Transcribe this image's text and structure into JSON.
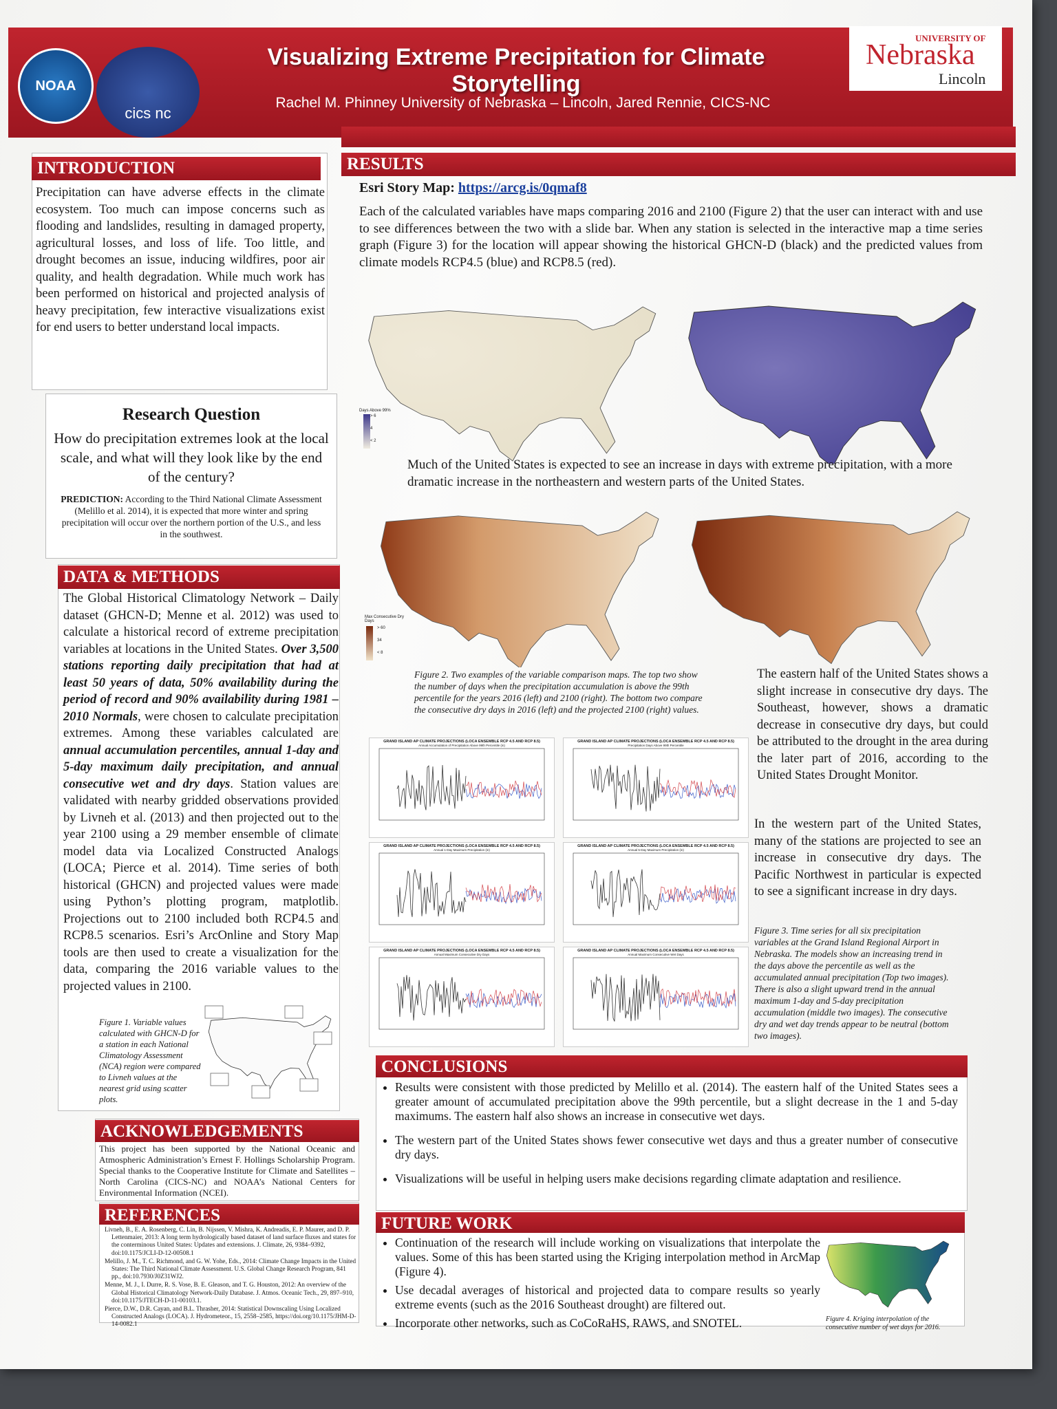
{
  "header": {
    "title": "Visualizing Extreme Precipitation for Climate Storytelling",
    "authors": "Rachel M. Phinney University of Nebraska – Lincoln, Jared Rennie, CICS-NC",
    "logo_left": "NOAA",
    "logo_middle": "cics nc",
    "logo_right_top": "UNIVERSITY OF",
    "logo_right_main": "Nebraska",
    "logo_right_bottom": "Lincoln"
  },
  "introduction": {
    "heading": "INTRODUCTION",
    "body": "Precipitation can have adverse effects in the climate ecosystem. Too much can impose concerns such as flooding and landslides, resulting in damaged property, agricultural losses, and loss of life. Too little, and drought becomes an issue, inducing wildfires, poor air quality, and health degradation. While much work has been performed on historical and projected analysis of heavy precipitation, few interactive visualizations exist for end users to better understand local impacts."
  },
  "research_question": {
    "heading": "Research Question",
    "question": "How do precipitation extremes look at the local scale, and what will they look like by the end of the century?",
    "prediction_label": "PREDICTION:",
    "prediction_text": "According to the Third National Climate Assessment (Melillo et al. 2014), it is expected that more winter and spring precipitation will occur over the northern portion of the U.S., and less in the southwest."
  },
  "data_methods": {
    "heading": "DATA & METHODS",
    "segments": [
      "The Global Historical Climatology Network – Daily dataset (GHCN-D; Menne et al. 2012) was used to calculate a historical record of extreme precipitation variables at locations in the United States. ",
      {
        "strong": "Over 3,500 stations reporting daily precipitation that had at least 50 years of data, 50% availability during the period of record and 90% availability during 1981 – 2010 Normals"
      },
      ", were chosen to calculate precipitation extremes. Among these variables calculated are ",
      {
        "strong": "annual accumulation percentiles, annual 1-day and 5-day maximum daily precipitation, and annual consecutive wet and dry days"
      },
      ". Station values are validated with nearby gridded observations provided by Livneh et al. (2013) and then projected out to the year 2100 using a 29 member ensemble of climate model data via Localized Constructed Analogs (LOCA; Pierce et al. 2014). Time series of both historical (GHCN) and projected values were made using Python’s plotting program, matplotlib. Projections out to 2100 included both RCP4.5 and RCP8.5 scenarios. Esri’s ArcOnline and Story Map tools are then used to create a visualization for the data, comparing the 2016 variable values to the projected values in 2100."
    ],
    "figure_caption": "Figure 1. Variable values calculated with GHCN-D for a station in each National Climatology Assessment (NCA) region were compared to Livneh values at the nearest grid using scatter plots."
  },
  "acknowledgements": {
    "heading": "ACKNOWLEDGEMENTS",
    "body": "This project has been supported by the National Oceanic and Atmospheric Administration’s Ernest F. Hollings Scholarship Program. Special thanks to the Cooperative Institute for Climate and Satellites – North Carolina (CICS-NC) and NOAA’s National Centers for Environmental Information (NCEI)."
  },
  "references": {
    "heading": "REFERENCES",
    "items": [
      "Livneh, B., E. A. Rosenberg, C. Lin, B. Nijssen, V. Mishra, K. Andreadis, E. P. Maurer, and D. P. Lettenmaier, 2013: A long term hydrologically based dataset of land surface fluxes and states for the conterminous United States: Updates and extensions. J. Climate, 26, 9384–9392, doi:10.1175/JCLI-D-12-00508.1",
      "Melillo, J. M., T. C. Richmond, and G. W. Yohe, Eds., 2014: Climate Change Impacts in the United States: The Third National Climate Assessment. U.S. Global Change Research Program, 841 pp., doi:10.7930/J0Z31WJ2.",
      "Menne, M. J., I. Durre, R. S. Vose, B. E. Gleason, and T. G. Houston, 2012: An overview of the Global Historical Climatology Network-Daily Database. J. Atmos. Oceanic Tech., 29, 897–910, doi:10.1175/JTECH-D-11-00103.1.",
      "Pierce, D.W., D.R. Cayan, and B.L. Thrasher, 2014: Statistical Downscaling Using Localized Constructed Analogs (LOCA). J. Hydrometeor., 15, 2558–2585, https://doi.org/10.1175/JHM-D-14-0082.1"
    ]
  },
  "results": {
    "heading": "RESULTS",
    "story_map_label": "Esri Story Map:",
    "story_map_link": "https://arcg.is/0qmaf8",
    "intro": "Each of the calculated variables have maps comparing 2016 and 2100 (Figure 2) that the user can interact with and use to see differences between the two with a slide bar. When any station is selected in the interactive map a time series graph (Figure 3) for the location will appear showing the historical GHCN-D (black) and the predicted values from climate models RCP4.5 (blue) and RCP8.5 (red).",
    "map_note": "Much of the United States is expected to see an increase in days with extreme precipitation, with a more dramatic increase in the northeastern and western parts of the United States.",
    "legend_top": {
      "title": "Days Above 99%",
      "labels": [
        "> 6",
        "4",
        "< 2"
      ]
    },
    "legend_bottom": {
      "title": "Max Consecutive Dry Days",
      "labels": [
        "> 60",
        "34",
        "< 8"
      ]
    },
    "figure2_caption": "Figure 2. Two examples of the variable comparison maps. The top two show the number of days when the precipitation accumulation is above the 99th percentile for the years 2016 (left) and 2100 (right). The bottom two compare the consecutive dry days in 2016 (left) and the projected 2100 (right) values.",
    "east_text": "The eastern half of the United States shows a slight increase in consecutive dry days. The Southeast, however, shows a dramatic decrease in consecutive dry days, but could be attributed to the drought in the area during the later part of 2016, according to the United States Drought Monitor.",
    "west_text": "In the western part of the United States, many of the stations are projected to see an increase in consecutive dry days. The Pacific Northwest in particular is expected to see a significant increase in dry days.",
    "figure3_caption": "Figure 3. Time series for all six precipitation variables at the Grand Island Regional Airport in Nebraska. The models show an increasing trend in the days above the percentile as well as the accumulated annual precipitation (Top two images). There is also a slight upward trend in the annual maximum 1-day and 5-day precipitation accumulation (middle two images). The consecutive dry and wet day trends appear to be neutral (bottom two images).",
    "charts": [
      {
        "title": "GRAND ISLAND AP CLIMATE PROJECTIONS (LOCA ENSEMBLE RCP 4.5 AND RCP 8.5)",
        "subtitle": "Annual Accumulation of Precipitation Above 99th Percentile (in)"
      },
      {
        "title": "GRAND ISLAND AP CLIMATE PROJECTIONS (LOCA ENSEMBLE RCP 4.5 AND RCP 8.5)",
        "subtitle": "Precipitation Days Above 99th Percentile"
      },
      {
        "title": "GRAND ISLAND AP CLIMATE PROJECTIONS (LOCA ENSEMBLE RCP 4.5 AND RCP 8.5)",
        "subtitle": "Annual 1-Day Maximum Precipitation (in)"
      },
      {
        "title": "GRAND ISLAND AP CLIMATE PROJECTIONS (LOCA ENSEMBLE RCP 4.5 AND RCP 8.5)",
        "subtitle": "Annual 5-Day Maximum Precipitation (in)"
      },
      {
        "title": "GRAND ISLAND AP CLIMATE PROJECTIONS (LOCA ENSEMBLE RCP 4.5 AND RCP 8.5)",
        "subtitle": "Annual Maximum Consecutive Dry Days"
      },
      {
        "title": "GRAND ISLAND AP CLIMATE PROJECTIONS (LOCA ENSEMBLE RCP 4.5 AND RCP 8.5)",
        "subtitle": "Annual Maximum Consecutive Wet Days"
      }
    ]
  },
  "conclusions": {
    "heading": "CONCLUSIONS",
    "items": [
      "Results were consistent with those predicted by Melillo et al. (2014). The eastern half of the United States sees a greater amount of accumulated precipitation above the 99th percentile, but a slight decrease in the 1 and 5-day maximums. The eastern half also shows an increase in consecutive wet days.",
      "The western part of the United States shows fewer consecutive wet days and thus a greater number of consecutive dry days.",
      "Visualizations will be useful in helping users make decisions regarding climate adaptation and resilience."
    ]
  },
  "future_work": {
    "heading": "FUTURE WORK",
    "items": [
      "Continuation of the research will include working on visualizations that interpolate the values. Some of this has been started using the Kriging interpolation method in ArcMap (Figure 4).",
      "Use decadal averages of historical and projected data to compare results so yearly extreme events (such as the 2016 Southeast drought) are filtered out.",
      "Incorporate other networks, such as CoCoRaHS, RAWS, and SNOTEL."
    ],
    "figure_caption": "Figure 4. Kriging interpolation of the consecutive number of wet days for 2016."
  }
}
